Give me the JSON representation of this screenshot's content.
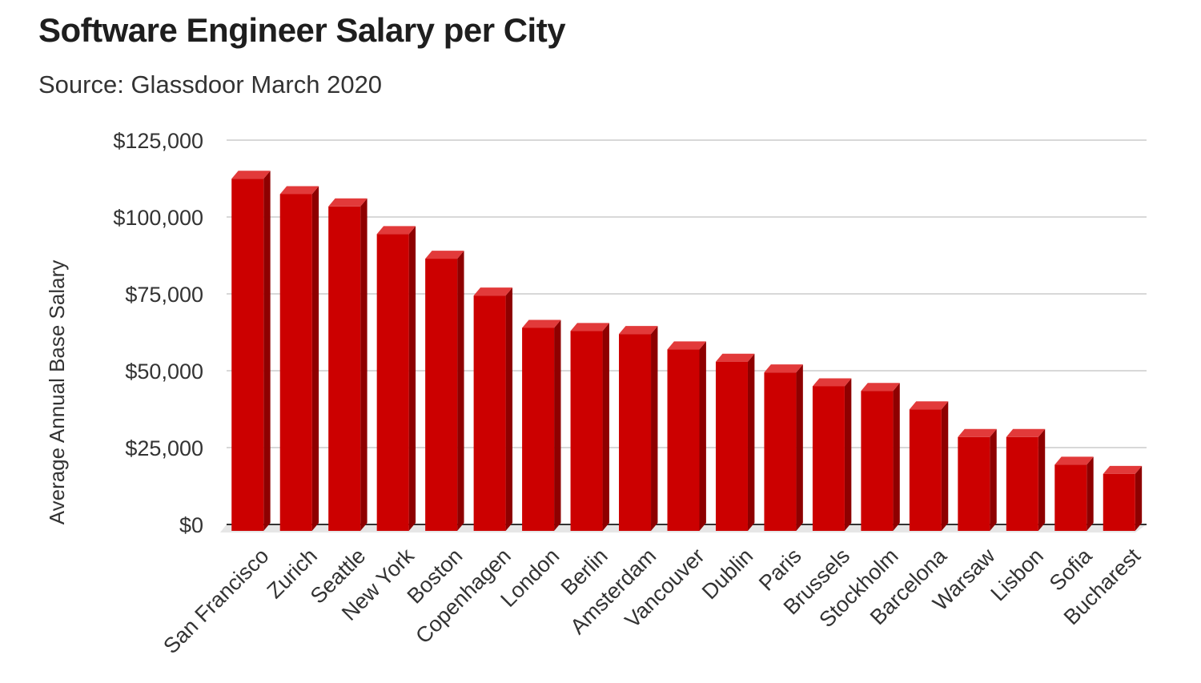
{
  "chart_data": {
    "type": "bar",
    "title": "Software Engineer Salary per City",
    "subtitle": "Source: Glassdoor March 2020",
    "xlabel": "",
    "ylabel": "Average Annual Base Salary",
    "ylim": [
      0,
      125000
    ],
    "yticks": [
      0,
      25000,
      50000,
      75000,
      100000,
      125000
    ],
    "ytick_labels": [
      "$0",
      "$25,000",
      "$50,000",
      "$75,000",
      "$100,000",
      "$125,000"
    ],
    "categories": [
      "San Francisco",
      "Zurich",
      "Seattle",
      "New York",
      "Boston",
      "Copenhagen",
      "London",
      "Berlin",
      "Amsterdam",
      "Vancouver",
      "Dublin",
      "Paris",
      "Brussels",
      "Stockholm",
      "Barcelona",
      "Warsaw",
      "Lisbon",
      "Sofia",
      "Bucharest"
    ],
    "values": [
      114000,
      109000,
      105000,
      96000,
      88000,
      76000,
      65500,
      64500,
      63500,
      58500,
      54500,
      51000,
      46500,
      45000,
      39000,
      30000,
      30000,
      21000,
      18000
    ],
    "grid": true,
    "legend": "none",
    "colors": {
      "bar_front": "#cc0000",
      "bar_top": "#e23a3a",
      "bar_side": "#8e0000",
      "grid": "#cccccc",
      "axis": "#333333",
      "floor": "#e6e6e6"
    }
  }
}
